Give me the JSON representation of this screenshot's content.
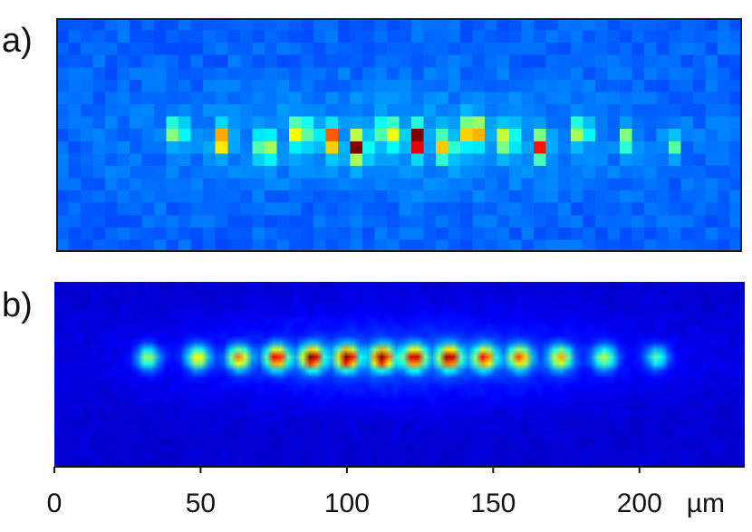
{
  "panels": [
    {
      "label": "a)"
    },
    {
      "label": "b)"
    }
  ],
  "chart_data": [
    {
      "type": "heatmap",
      "panel": "a",
      "description_source": "fluorescence image of ion chain (pixelated)",
      "colormap": "jet",
      "background_level": 0.22,
      "grid": false,
      "spots": [
        {
          "x": 42,
          "intensity": 0.45
        },
        {
          "x": 57,
          "intensity": 0.55
        },
        {
          "x": 72,
          "intensity": 0.55
        },
        {
          "x": 84,
          "intensity": 0.7
        },
        {
          "x": 94,
          "intensity": 0.65
        },
        {
          "x": 104,
          "intensity": 0.85
        },
        {
          "x": 114,
          "intensity": 0.6
        },
        {
          "x": 124,
          "intensity": 0.9
        },
        {
          "x": 134,
          "intensity": 0.6
        },
        {
          "x": 143,
          "intensity": 1.0
        },
        {
          "x": 155,
          "intensity": 0.55
        },
        {
          "x": 166,
          "intensity": 0.6
        },
        {
          "x": 180,
          "intensity": 0.45
        },
        {
          "x": 196,
          "intensity": 0.3
        },
        {
          "x": 211,
          "intensity": 0.25
        }
      ]
    },
    {
      "type": "heatmap",
      "panel": "b",
      "colormap": "jet",
      "background_level": 0.08,
      "grid": false,
      "xlim": [
        0,
        236
      ],
      "xticks": [
        0,
        50,
        100,
        150,
        200
      ],
      "xticklabels": [
        "0",
        "50",
        "100",
        "150",
        "200"
      ],
      "xunit": "µm",
      "spots": [
        {
          "x": 32,
          "intensity": 0.45
        },
        {
          "x": 49,
          "intensity": 0.55
        },
        {
          "x": 63,
          "intensity": 0.62
        },
        {
          "x": 76,
          "intensity": 0.8
        },
        {
          "x": 88,
          "intensity": 0.9
        },
        {
          "x": 100,
          "intensity": 0.88
        },
        {
          "x": 112,
          "intensity": 0.86
        },
        {
          "x": 123,
          "intensity": 0.8
        },
        {
          "x": 135,
          "intensity": 0.84
        },
        {
          "x": 147,
          "intensity": 0.72
        },
        {
          "x": 159,
          "intensity": 0.66
        },
        {
          "x": 173,
          "intensity": 0.58
        },
        {
          "x": 188,
          "intensity": 0.45
        },
        {
          "x": 206,
          "intensity": 0.35
        }
      ]
    }
  ]
}
